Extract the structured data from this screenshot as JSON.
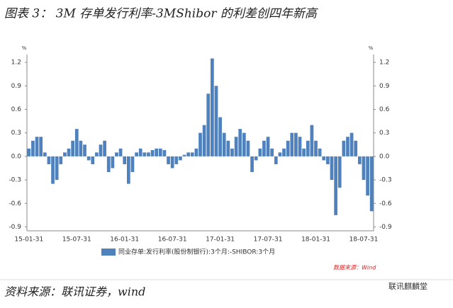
{
  "title": "图表 3：  3M 存单发行利率-3MShibor 的利差创四年新高",
  "chart_data": {
    "type": "bar",
    "y_unit": "%",
    "y2_unit": "%",
    "categories": [
      "15-01-31",
      null,
      null,
      null,
      null,
      null,
      null,
      null,
      null,
      null,
      null,
      null,
      "15-07-31",
      null,
      null,
      null,
      null,
      null,
      null,
      null,
      null,
      null,
      null,
      null,
      "16-01-31",
      null,
      null,
      null,
      null,
      null,
      null,
      null,
      null,
      null,
      null,
      null,
      "16-07-31",
      null,
      null,
      null,
      null,
      null,
      null,
      null,
      null,
      null,
      null,
      null,
      "17-01-31",
      null,
      null,
      null,
      null,
      null,
      null,
      null,
      null,
      null,
      null,
      null,
      "17-07-31",
      null,
      null,
      null,
      null,
      null,
      null,
      null,
      null,
      null,
      null,
      null,
      "18-01-31",
      null,
      null,
      null,
      null,
      null,
      null,
      null,
      null,
      null,
      null,
      null,
      "18-07-31",
      null,
      null
    ],
    "series": [
      {
        "name": "同业存单:发行利率(股份制银行):3个月:-SHIBOR:3个月",
        "color": "#4f81bd",
        "values": [
          0.1,
          0.2,
          0.25,
          0.25,
          0.05,
          -0.1,
          -0.35,
          -0.3,
          -0.1,
          0.05,
          0.1,
          0.2,
          0.35,
          0.2,
          0.15,
          -0.05,
          -0.1,
          0.05,
          0.15,
          0.2,
          -0.2,
          -0.15,
          0.05,
          0.1,
          -0.1,
          -0.35,
          -0.2,
          0.05,
          0.1,
          0.05,
          0.05,
          0.08,
          0.1,
          0.1,
          0.08,
          -0.1,
          -0.15,
          -0.1,
          -0.05,
          0.02,
          0.05,
          0.05,
          0.1,
          0.3,
          0.4,
          0.8,
          1.25,
          0.9,
          0.5,
          0.3,
          0.2,
          0.1,
          0.25,
          0.35,
          0.3,
          0.2,
          -0.2,
          -0.05,
          0.1,
          0.2,
          0.25,
          0.1,
          -0.1,
          0.05,
          0.1,
          0.2,
          0.3,
          0.3,
          0.25,
          0.1,
          0.2,
          0.4,
          0.2,
          0.1,
          -0.05,
          -0.1,
          -0.3,
          -0.75,
          -0.4,
          0.2,
          0.25,
          0.3,
          0.2,
          -0.1,
          -0.3,
          -0.5,
          -0.7
        ]
      }
    ],
    "ylim": [
      -0.95,
      1.3
    ],
    "yticks": [
      1.2,
      0.9,
      0.6,
      0.3,
      {
        "value": 0,
        "label": "0.0"
      },
      -0.3,
      -0.6,
      -0.9
    ],
    "y2lim": [
      -0.95,
      1.3
    ],
    "y2ticks": [
      1.2,
      0.9,
      0.6,
      0.3,
      {
        "value": 0,
        "label": "0.0"
      },
      -0.3,
      -0.6,
      -0.9
    ],
    "source_note": "数据来源：Wind"
  },
  "footer": {
    "source": "资料来源：联讯证券，wind",
    "watermark": "联讯麒麟堂"
  }
}
